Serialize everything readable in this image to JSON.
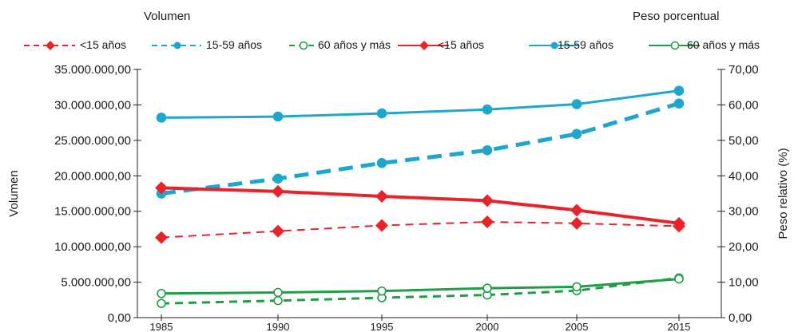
{
  "header": {
    "left_title": "Volumen",
    "right_title": "Peso porcentual"
  },
  "chart_data": {
    "type": "line",
    "x": [
      "1985",
      "1990",
      "1995",
      "2000",
      "2005",
      "2015"
    ],
    "ylabel": "Volumen",
    "y2label": "Peso relativo (%)",
    "ylim": [
      0,
      35000000
    ],
    "y2lim": [
      0,
      70
    ],
    "y_ticks": [
      "0,00",
      "5.000.000,00",
      "10.000.000,00",
      "15.000.000,00",
      "20.000.000,00",
      "25.000.000,00",
      "30.000.000,00",
      "35.000.000,00"
    ],
    "y2_ticks": [
      "0,00",
      "10,00",
      "20,00",
      "30,00",
      "40,00",
      "50,00",
      "60,00",
      "70,00"
    ],
    "series": [
      {
        "name": "<15 años",
        "axis": "left",
        "style": "dashed",
        "marker": "diamond",
        "color": "#e8232b",
        "values": [
          11300000,
          12200000,
          13000000,
          13500000,
          13300000,
          12900000
        ]
      },
      {
        "name": "15-59 años",
        "axis": "left",
        "style": "dashed",
        "marker": "dot",
        "color": "#1ea7cc",
        "values": [
          17500000,
          19600000,
          21800000,
          23600000,
          25900000,
          30200000
        ]
      },
      {
        "name": "60 años y más",
        "axis": "left",
        "style": "dashed",
        "marker": "open-circle",
        "color": "#1f9e46",
        "values": [
          2000000,
          2400000,
          2800000,
          3200000,
          3800000,
          5600000
        ]
      },
      {
        "name": "<15 años",
        "axis": "right",
        "style": "solid",
        "marker": "diamond",
        "color": "#e8232b",
        "values": [
          36.6,
          35.6,
          34.2,
          33.0,
          30.3,
          26.6
        ]
      },
      {
        "name": "15-59 años",
        "axis": "right",
        "style": "solid",
        "marker": "dot",
        "color": "#1ea7cc",
        "values": [
          56.4,
          56.7,
          57.6,
          58.7,
          60.2,
          64.0
        ]
      },
      {
        "name": "60 años y más",
        "axis": "right",
        "style": "solid",
        "marker": "open-circle",
        "color": "#1f9e46",
        "values": [
          6.8,
          7.1,
          7.5,
          8.3,
          8.7,
          10.9
        ]
      }
    ]
  }
}
